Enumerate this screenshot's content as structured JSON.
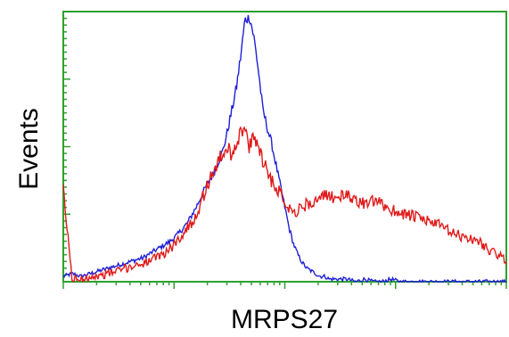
{
  "chart_data": {
    "type": "line",
    "title": "",
    "xlabel": "MRPS27",
    "ylabel": "Events",
    "x_scale": "log",
    "xlim": [
      0,
      1
    ],
    "ylim": [
      0,
      1
    ],
    "grid": false,
    "legend": "none",
    "colors": {
      "axis": "#2ea02e",
      "frame": "#2ea02e"
    },
    "series": [
      {
        "color": "#1f1fd6",
        "x": [
          0.0,
          0.02,
          0.04,
          0.06,
          0.08,
          0.1,
          0.12,
          0.14,
          0.16,
          0.18,
          0.2,
          0.22,
          0.24,
          0.26,
          0.28,
          0.3,
          0.32,
          0.34,
          0.36,
          0.37,
          0.38,
          0.39,
          0.4,
          0.41,
          0.42,
          0.43,
          0.44,
          0.45,
          0.46,
          0.47,
          0.48,
          0.49,
          0.5,
          0.51,
          0.52,
          0.53,
          0.54,
          0.55,
          0.56,
          0.57,
          0.58,
          0.59,
          0.6,
          0.62,
          0.64,
          0.66,
          0.68,
          0.7,
          0.72,
          0.74,
          0.76,
          0.78,
          0.8,
          0.82,
          0.84,
          0.86,
          0.88,
          0.9,
          0.92,
          0.94,
          0.96,
          0.98,
          1.0
        ],
        "y": [
          0.02,
          0.03,
          0.02,
          0.03,
          0.04,
          0.05,
          0.06,
          0.07,
          0.08,
          0.09,
          0.11,
          0.13,
          0.15,
          0.18,
          0.22,
          0.28,
          0.35,
          0.41,
          0.49,
          0.56,
          0.64,
          0.72,
          0.84,
          0.98,
          1.0,
          0.92,
          0.8,
          0.65,
          0.58,
          0.52,
          0.44,
          0.36,
          0.28,
          0.2,
          0.14,
          0.1,
          0.07,
          0.05,
          0.04,
          0.03,
          0.02,
          0.02,
          0.01,
          0.01,
          0.01,
          0.0,
          0.01,
          0.0,
          0.0,
          0.01,
          0.0,
          0.0,
          0.0,
          0.0,
          0.0,
          0.0,
          0.0,
          0.0,
          0.0,
          0.0,
          0.0,
          0.0,
          0.0
        ]
      },
      {
        "color": "#e01a1a",
        "x": [
          0.0,
          0.02,
          0.04,
          0.06,
          0.08,
          0.1,
          0.12,
          0.14,
          0.16,
          0.18,
          0.2,
          0.22,
          0.24,
          0.26,
          0.28,
          0.3,
          0.32,
          0.34,
          0.36,
          0.37,
          0.38,
          0.39,
          0.4,
          0.41,
          0.42,
          0.43,
          0.44,
          0.45,
          0.46,
          0.47,
          0.48,
          0.49,
          0.5,
          0.51,
          0.52,
          0.53,
          0.54,
          0.55,
          0.56,
          0.57,
          0.58,
          0.59,
          0.6,
          0.62,
          0.64,
          0.66,
          0.68,
          0.7,
          0.72,
          0.74,
          0.76,
          0.78,
          0.8,
          0.82,
          0.84,
          0.86,
          0.88,
          0.9,
          0.92,
          0.94,
          0.96,
          0.98,
          1.0
        ],
        "y": [
          0.34,
          0.01,
          0.01,
          0.02,
          0.02,
          0.03,
          0.04,
          0.05,
          0.06,
          0.07,
          0.08,
          0.1,
          0.12,
          0.16,
          0.2,
          0.25,
          0.34,
          0.42,
          0.48,
          0.5,
          0.48,
          0.52,
          0.56,
          0.57,
          0.5,
          0.54,
          0.52,
          0.46,
          0.42,
          0.38,
          0.36,
          0.33,
          0.3,
          0.28,
          0.26,
          0.27,
          0.28,
          0.29,
          0.3,
          0.3,
          0.31,
          0.32,
          0.32,
          0.32,
          0.32,
          0.31,
          0.29,
          0.3,
          0.29,
          0.27,
          0.26,
          0.25,
          0.24,
          0.23,
          0.22,
          0.2,
          0.18,
          0.17,
          0.16,
          0.15,
          0.12,
          0.1,
          0.08
        ]
      }
    ]
  }
}
